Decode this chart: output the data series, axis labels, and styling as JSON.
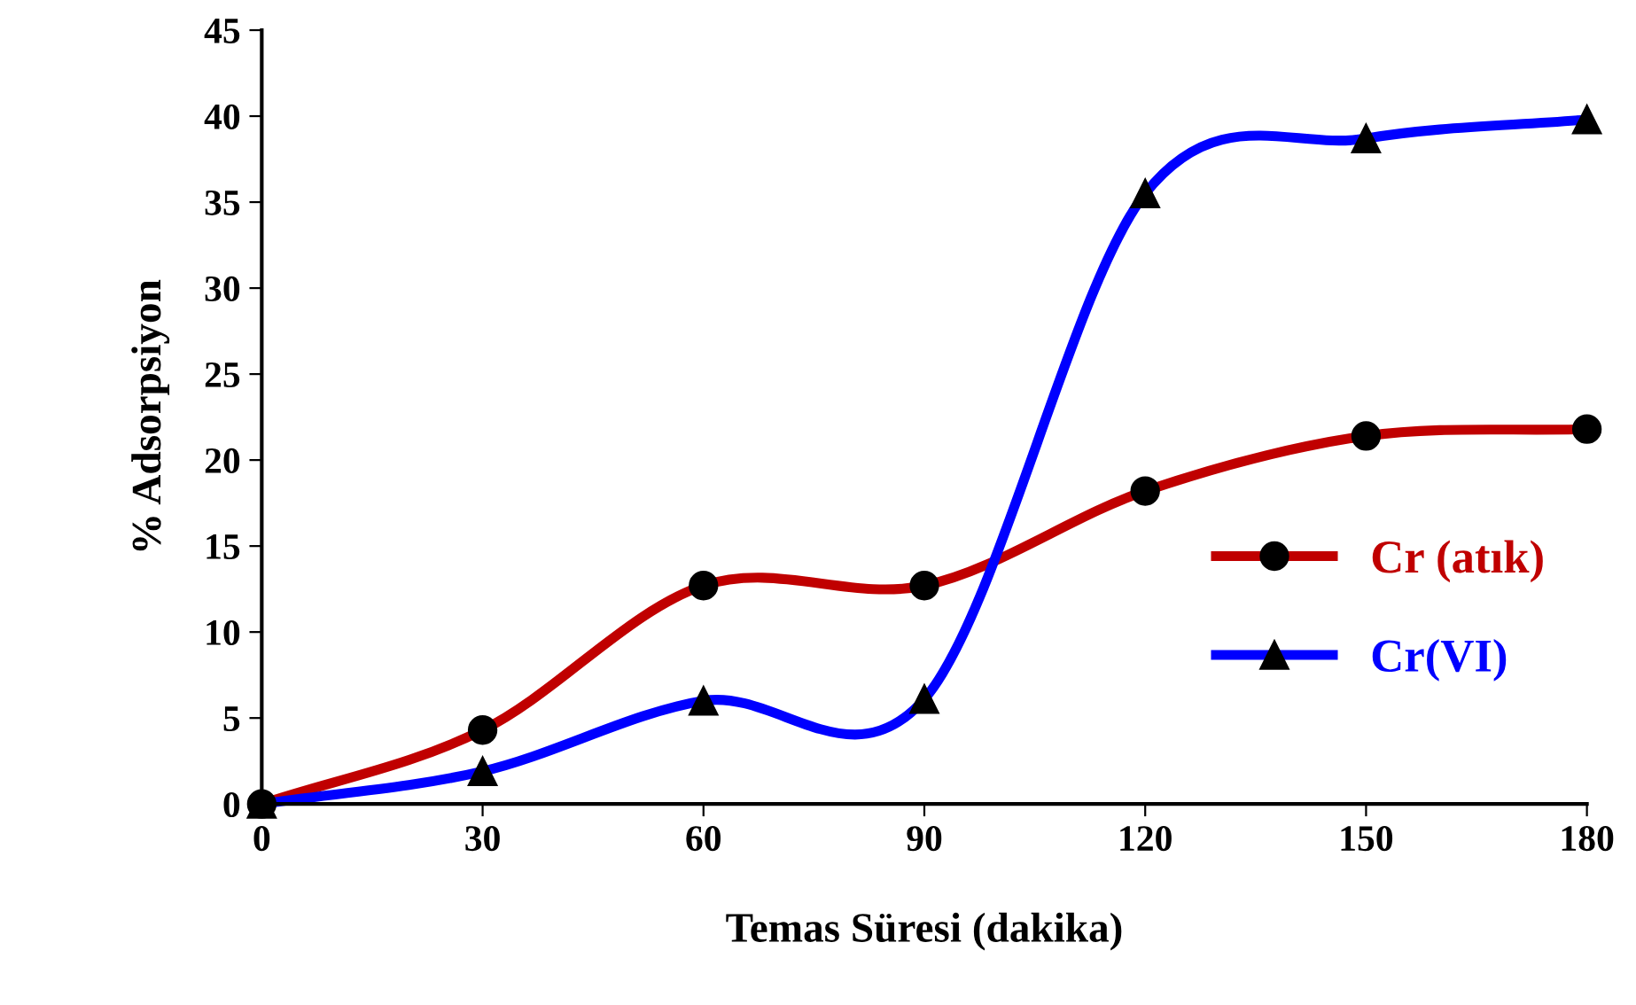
{
  "chart_data": {
    "type": "line",
    "xlabel": "Temas Süresi (dakika)",
    "ylabel": "% Adsorpsiyon",
    "x": [
      0,
      30,
      60,
      90,
      120,
      150,
      180
    ],
    "series": [
      {
        "name": "Cr (atık)",
        "color": "#c00000",
        "marker": "circle",
        "values": [
          0,
          4.3,
          12.7,
          12.7,
          18.2,
          21.4,
          21.8
        ]
      },
      {
        "name": "Cr(VI)",
        "color": "#0000ff",
        "marker": "triangle",
        "values": [
          0,
          1.9,
          6.0,
          6.1,
          35.5,
          38.7,
          39.8
        ]
      }
    ],
    "xlim": [
      0,
      180
    ],
    "xticks": [
      0,
      30,
      60,
      90,
      120,
      150,
      180
    ],
    "ylim": [
      0,
      45
    ],
    "yticks": [
      0,
      5,
      10,
      15,
      20,
      25,
      30,
      35,
      40,
      45
    ],
    "grid": false,
    "legend": "right",
    "line_style": "solid"
  }
}
